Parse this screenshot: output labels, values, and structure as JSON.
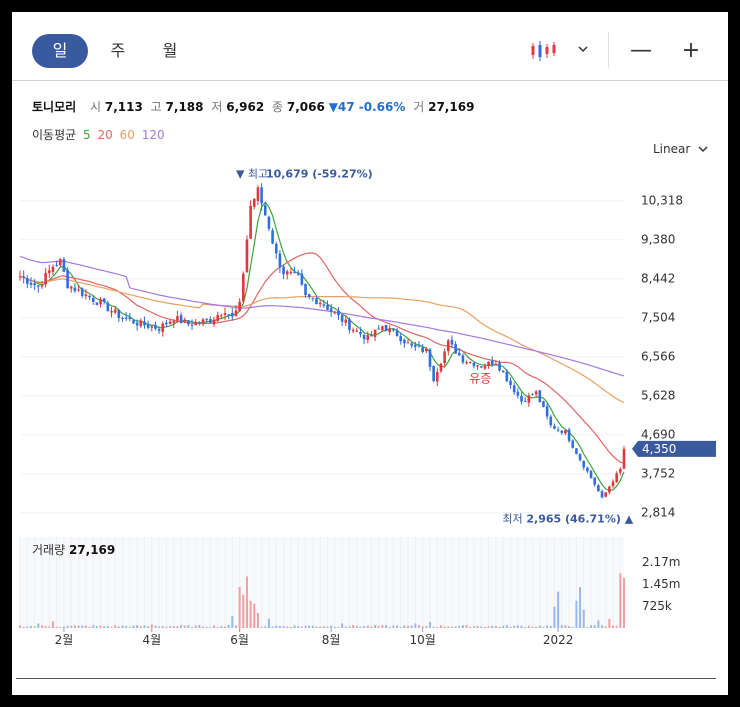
{
  "tabs": [
    {
      "label": "일",
      "active": true
    },
    {
      "label": "주",
      "active": false
    },
    {
      "label": "월",
      "active": false
    }
  ],
  "toolbar": {
    "chart_type_icon": "candlestick-icon",
    "dropdown_icon": "chevron-down-icon",
    "zoom_out_label": "—",
    "zoom_in_label": "+"
  },
  "stock": {
    "name": "토니모리",
    "open_label": "시",
    "open": "7,113",
    "high_label": "고",
    "high": "7,188",
    "low_label": "저",
    "low": "6,962",
    "close_label": "종",
    "close": "7,066",
    "change": "▼47 -0.66%",
    "volume_label": "거",
    "volume": "27,169"
  },
  "ma_legend": {
    "label": "이동평균",
    "items": [
      {
        "period": "5",
        "color": "#3aa63a"
      },
      {
        "period": "20",
        "color": "#e06666"
      },
      {
        "period": "60",
        "color": "#e8a060"
      },
      {
        "period": "120",
        "color": "#a47ae0"
      }
    ]
  },
  "scale_mode": "Linear",
  "colors": {
    "up": "#e0383e",
    "down": "#2f6ee0",
    "accent": "#3a5aa0",
    "current_price_badge": "#3a5aa0"
  },
  "chart_data": {
    "type": "candlestick",
    "y_ticks": [
      "10,318",
      "9,380",
      "8,442",
      "7,504",
      "6,566",
      "5,628",
      "4,690",
      "3,752",
      "2,814"
    ],
    "y_tick_values": [
      10318,
      9380,
      8442,
      7504,
      6566,
      5628,
      4690,
      3752,
      2814
    ],
    "ylim": [
      2350,
      11250
    ],
    "x_ticks": [
      "2월",
      "4월",
      "6월",
      "8월",
      "10월",
      "2022"
    ],
    "x_tick_index": [
      12,
      36,
      60,
      85,
      110,
      147
    ],
    "n_days": 166,
    "current_price": "4,350",
    "current_price_value": 4350,
    "high_annotation": {
      "label": "▼ 최고",
      "value_text": "10,679 (-59.27%)",
      "index": 65,
      "value": 10679
    },
    "low_annotation": {
      "label": "최저",
      "value_text": "2,965 (46.71%) ▲",
      "index": 158,
      "value": 2965
    },
    "event_label": {
      "text": "유증",
      "index": 126
    },
    "price_anchors": [
      [
        0,
        8500
      ],
      [
        5,
        8250
      ],
      [
        9,
        8750
      ],
      [
        11,
        8850
      ],
      [
        13,
        8300
      ],
      [
        17,
        8100
      ],
      [
        22,
        7850
      ],
      [
        28,
        7500
      ],
      [
        33,
        7350
      ],
      [
        38,
        7250
      ],
      [
        42,
        7500
      ],
      [
        46,
        7350
      ],
      [
        52,
        7450
      ],
      [
        56,
        7700
      ],
      [
        58,
        7500
      ],
      [
        60,
        7800
      ],
      [
        63,
        10200
      ],
      [
        65,
        10550
      ],
      [
        68,
        9700
      ],
      [
        70,
        9000
      ],
      [
        72,
        8600
      ],
      [
        76,
        8450
      ],
      [
        78,
        8000
      ],
      [
        82,
        7900
      ],
      [
        86,
        7600
      ],
      [
        90,
        7300
      ],
      [
        95,
        7000
      ],
      [
        99,
        7300
      ],
      [
        103,
        7100
      ],
      [
        107,
        6800
      ],
      [
        111,
        6700
      ],
      [
        113,
        6050
      ],
      [
        117,
        6900
      ],
      [
        121,
        6500
      ],
      [
        126,
        6350
      ],
      [
        130,
        6450
      ],
      [
        134,
        5900
      ],
      [
        137,
        5500
      ],
      [
        141,
        5700
      ],
      [
        145,
        4900
      ],
      [
        149,
        4750
      ],
      [
        153,
        4100
      ],
      [
        157,
        3500
      ],
      [
        159,
        3150
      ],
      [
        162,
        3600
      ],
      [
        164,
        3850
      ],
      [
        165,
        4350
      ]
    ],
    "volume_ticks": [
      "2.17m",
      "1.45m",
      "725k"
    ],
    "volume_tick_values": [
      2170000,
      1450000,
      725000
    ],
    "volume_max": 3000000,
    "volume_current": "27,169",
    "volume_spikes": [
      [
        5,
        150000
      ],
      [
        9,
        220000
      ],
      [
        18,
        80000
      ],
      [
        36,
        120000
      ],
      [
        58,
        400000
      ],
      [
        60,
        1350000
      ],
      [
        61,
        1100000
      ],
      [
        62,
        1700000
      ],
      [
        63,
        900000
      ],
      [
        64,
        800000
      ],
      [
        65,
        500000
      ],
      [
        68,
        300000
      ],
      [
        88,
        150000
      ],
      [
        108,
        150000
      ],
      [
        112,
        200000
      ],
      [
        146,
        700000
      ],
      [
        147,
        1200000
      ],
      [
        152,
        900000
      ],
      [
        153,
        1350000
      ],
      [
        154,
        600000
      ],
      [
        158,
        250000
      ],
      [
        161,
        300000
      ],
      [
        164,
        1800000
      ],
      [
        165,
        1650000
      ]
    ]
  },
  "volume_section": {
    "label": "거래량",
    "value": "27,169"
  }
}
